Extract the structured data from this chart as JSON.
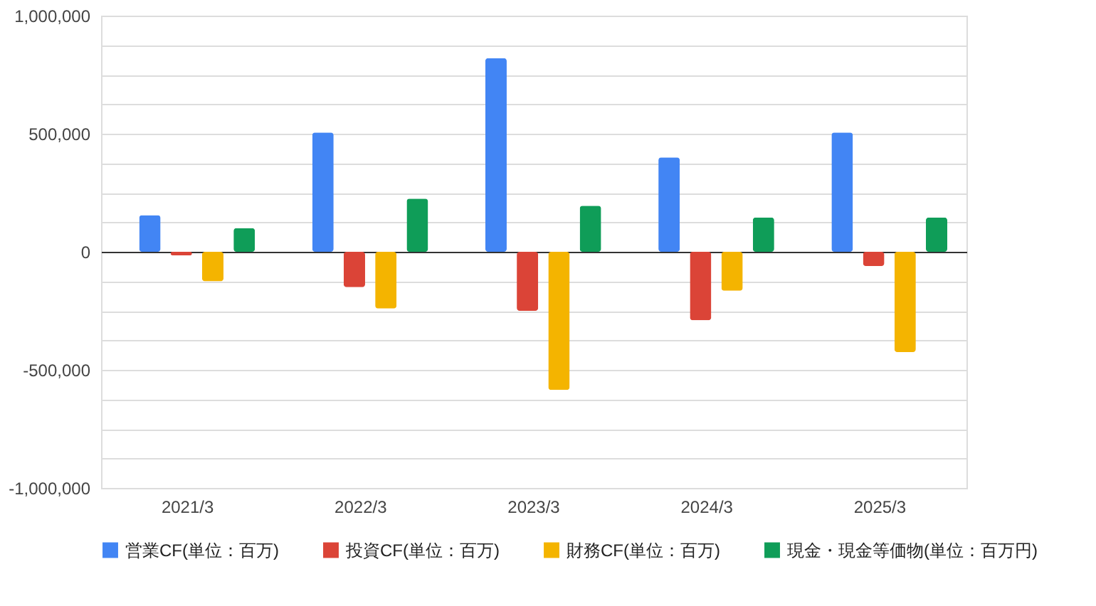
{
  "chart_data": {
    "type": "bar",
    "categories": [
      "2021/3",
      "2022/3",
      "2023/3",
      "2024/3",
      "2025/3"
    ],
    "series": [
      {
        "name": "営業CF(単位：百万)",
        "color": "#4285f4",
        "values": [
          155000,
          505000,
          820000,
          400000,
          505000
        ]
      },
      {
        "name": "投資CF(単位：百万)",
        "color": "#db4437",
        "values": [
          -15000,
          -150000,
          -250000,
          -290000,
          -60000
        ]
      },
      {
        "name": "財務CF(単位：百万)",
        "color": "#f4b400",
        "values": [
          -125000,
          -240000,
          -585000,
          -165000,
          -425000
        ]
      },
      {
        "name": "現金・現金等価物(単位：百万円)",
        "color": "#0f9d58",
        "values": [
          100000,
          225000,
          195000,
          145000,
          145000
        ]
      }
    ],
    "ylim": [
      -1000000,
      1000000
    ],
    "yticks": [
      {
        "value": -1000000,
        "label": "-1,000,000"
      },
      {
        "value": -875000,
        "label": null
      },
      {
        "value": -750000,
        "label": null
      },
      {
        "value": -625000,
        "label": null
      },
      {
        "value": -500000,
        "label": "-500,000"
      },
      {
        "value": -375000,
        "label": null
      },
      {
        "value": -250000,
        "label": null
      },
      {
        "value": -125000,
        "label": null
      },
      0,
      {
        "value": 125000,
        "label": null
      },
      {
        "value": 250000,
        "label": null
      },
      {
        "value": 375000,
        "label": null
      },
      {
        "value": 500000,
        "label": "500,000"
      },
      {
        "value": 625000,
        "label": null
      },
      {
        "value": 750000,
        "label": null
      },
      {
        "value": 875000,
        "label": null
      },
      {
        "value": 1000000,
        "label": "1,000,000"
      }
    ],
    "grid": "y",
    "legend": "bottom"
  }
}
